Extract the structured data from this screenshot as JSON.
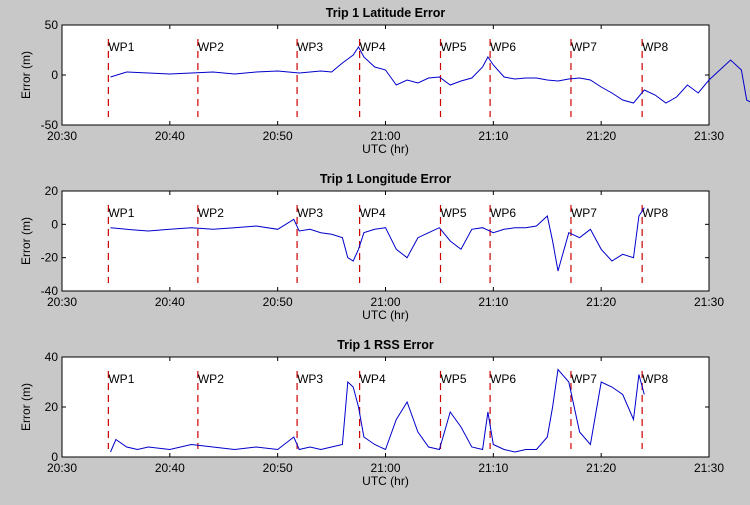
{
  "chart_data": [
    {
      "type": "line",
      "title": "Trip 1 Latitude Error",
      "xlabel": "UTC (hr)",
      "ylabel": "Error (m)",
      "xlim": [
        "20:30",
        "21:30"
      ],
      "ylim": [
        -50,
        50
      ],
      "yticks": [
        "50",
        "0",
        "-50"
      ],
      "grid": false,
      "series": [
        {
          "color": "#0000cc",
          "x_min": [
            34.5,
            36,
            38,
            40,
            42,
            44,
            46,
            48,
            50,
            52,
            54,
            55,
            56,
            57,
            57.5,
            58,
            59,
            60,
            61,
            62,
            63,
            64,
            65,
            66,
            67,
            68,
            69,
            69.5,
            70,
            71,
            72,
            73,
            74,
            75,
            76,
            77,
            78,
            79,
            80,
            81,
            82,
            83,
            84,
            85,
            86,
            87,
            88,
            89,
            90,
            91,
            92,
            93,
            93.5,
            94
          ],
          "values": [
            -2,
            3,
            2,
            1,
            2,
            3,
            1,
            3,
            4,
            2,
            4,
            3,
            12,
            20,
            28,
            18,
            8,
            5,
            -10,
            -5,
            -8,
            -3,
            -2,
            -10,
            -6,
            -3,
            8,
            18,
            10,
            -2,
            -4,
            -3,
            -3,
            -5,
            -6,
            -4,
            -3,
            -5,
            -12,
            -18,
            -25,
            -28,
            -15,
            -20,
            -28,
            -22,
            -10,
            -18,
            -5,
            5,
            15,
            5,
            -25,
            -28
          ]
        }
      ],
      "waypoints": [
        {
          "label": "WP1",
          "x_min": 34.3
        },
        {
          "label": "WP2",
          "x_min": 42.6
        },
        {
          "label": "WP3",
          "x_min": 51.8
        },
        {
          "label": "WP4",
          "x_min": 57.6
        },
        {
          "label": "WP5",
          "x_min": 65.1
        },
        {
          "label": "WP6",
          "x_min": 69.7
        },
        {
          "label": "WP7",
          "x_min": 77.2
        },
        {
          "label": "WP8",
          "x_min": 83.8
        }
      ]
    },
    {
      "type": "line",
      "title": "Trip 1 Longitude Error",
      "xlabel": "UTC (hr)",
      "ylabel": "Error (m)",
      "xlim": [
        "20:30",
        "21:30"
      ],
      "ylim": [
        -40,
        20
      ],
      "yticks": [
        "20",
        "0",
        "-20",
        "-40"
      ],
      "grid": false,
      "series": [
        {
          "color": "#0000cc",
          "x_min": [
            34.5,
            36,
            38,
            40,
            42,
            44,
            46,
            48,
            50,
            51.5,
            52,
            53,
            54,
            55,
            56,
            56.5,
            57,
            57.5,
            58,
            59,
            60,
            61,
            62,
            63,
            64,
            65,
            66,
            67,
            68,
            69,
            70,
            71,
            72,
            73,
            74,
            75,
            75.5,
            76,
            77,
            78,
            79,
            80,
            81,
            82,
            83,
            83.5,
            84
          ],
          "values": [
            -2,
            -3,
            -4,
            -3,
            -2,
            -3,
            -2,
            -1,
            -3,
            3,
            -4,
            -3,
            -5,
            -6,
            -8,
            -20,
            -22,
            -15,
            -5,
            -3,
            -2,
            -15,
            -20,
            -8,
            -5,
            -2,
            -10,
            -15,
            -3,
            -2,
            -5,
            -3,
            -2,
            -2,
            -1,
            5,
            -10,
            -28,
            -5,
            -8,
            -3,
            -15,
            -22,
            -18,
            -20,
            5,
            10
          ]
        }
      ],
      "waypoints": [
        {
          "label": "WP1",
          "x_min": 34.3
        },
        {
          "label": "WP2",
          "x_min": 42.6
        },
        {
          "label": "WP3",
          "x_min": 51.8
        },
        {
          "label": "WP4",
          "x_min": 57.6
        },
        {
          "label": "WP5",
          "x_min": 65.1
        },
        {
          "label": "WP6",
          "x_min": 69.7
        },
        {
          "label": "WP7",
          "x_min": 77.2
        },
        {
          "label": "WP8",
          "x_min": 83.8
        }
      ]
    },
    {
      "type": "line",
      "title": "Trip 1 RSS Error",
      "xlabel": "UTC (hr)",
      "ylabel": "Error (m)",
      "xlim": [
        "20:30",
        "21:30"
      ],
      "ylim": [
        0,
        40
      ],
      "yticks": [
        "40",
        "20",
        "0"
      ],
      "grid": false,
      "series": [
        {
          "color": "#0000cc",
          "x_min": [
            34.5,
            35,
            36,
            37,
            38,
            40,
            42,
            44,
            46,
            48,
            50,
            51.5,
            52,
            53,
            54,
            55,
            56,
            56.5,
            57,
            57.5,
            58,
            59,
            60,
            61,
            62,
            63,
            64,
            65,
            66,
            67,
            68,
            69,
            69.5,
            70,
            71,
            72,
            73,
            74,
            75,
            75.5,
            76,
            77,
            78,
            79,
            80,
            81,
            82,
            83,
            83.5,
            84
          ],
          "values": [
            2,
            7,
            4,
            3,
            4,
            3,
            5,
            4,
            3,
            4,
            3,
            8,
            3,
            4,
            3,
            4,
            5,
            30,
            28,
            20,
            8,
            5,
            3,
            15,
            22,
            10,
            4,
            3,
            18,
            12,
            4,
            3,
            18,
            5,
            3,
            2,
            3,
            3,
            8,
            20,
            35,
            30,
            10,
            5,
            30,
            28,
            25,
            15,
            33,
            25
          ]
        }
      ],
      "waypoints": [
        {
          "label": "WP1",
          "x_min": 34.3
        },
        {
          "label": "WP2",
          "x_min": 42.6
        },
        {
          "label": "WP3",
          "x_min": 51.8
        },
        {
          "label": "WP4",
          "x_min": 57.6
        },
        {
          "label": "WP5",
          "x_min": 65.1
        },
        {
          "label": "WP6",
          "x_min": 69.7
        },
        {
          "label": "WP7",
          "x_min": 77.2
        },
        {
          "label": "WP8",
          "x_min": 83.8
        }
      ]
    }
  ],
  "shared": {
    "xticks": [
      "20:30",
      "20:40",
      "20:50",
      "21:00",
      "21:10",
      "21:20",
      "21:30"
    ],
    "waypoint_color": "#cc0000"
  }
}
